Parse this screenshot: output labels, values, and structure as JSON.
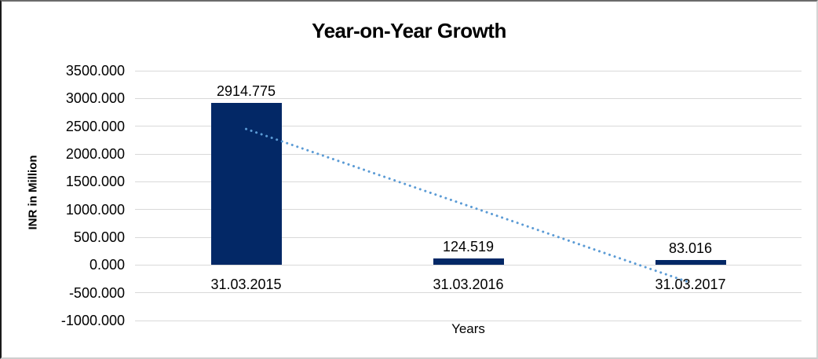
{
  "chart": {
    "title": "Year-on-Year Growth"
  },
  "chart_data": {
    "type": "bar",
    "title": "Year-on-Year Growth",
    "categories": [
      "31.03.2015",
      "31.03.2016",
      "31.03.2017"
    ],
    "values": [
      2914.775,
      124.519,
      83.016
    ],
    "data_labels": [
      "2914.775",
      "124.519",
      "83.016"
    ],
    "xlabel": "Years",
    "ylabel": "INR in Million",
    "ylim": [
      -1000,
      3500
    ],
    "ytick_step": 500,
    "ytick_labels": [
      "3500.000",
      "3000.000",
      "2500.000",
      "2000.000",
      "1500.000",
      "1000.000",
      "500.000",
      "0.000",
      "-500.000",
      "-1000.000"
    ],
    "grid": true,
    "legend": "none",
    "colors": {
      "bar": "#032866",
      "trendline": "#5b9bd5",
      "gridline": "#d9d9d9",
      "text": "#000000"
    },
    "trendline": {
      "style": "dotted",
      "from": {
        "category_index": 0,
        "value": 2450
      },
      "to": {
        "category_index": 2,
        "value": -320
      }
    }
  }
}
